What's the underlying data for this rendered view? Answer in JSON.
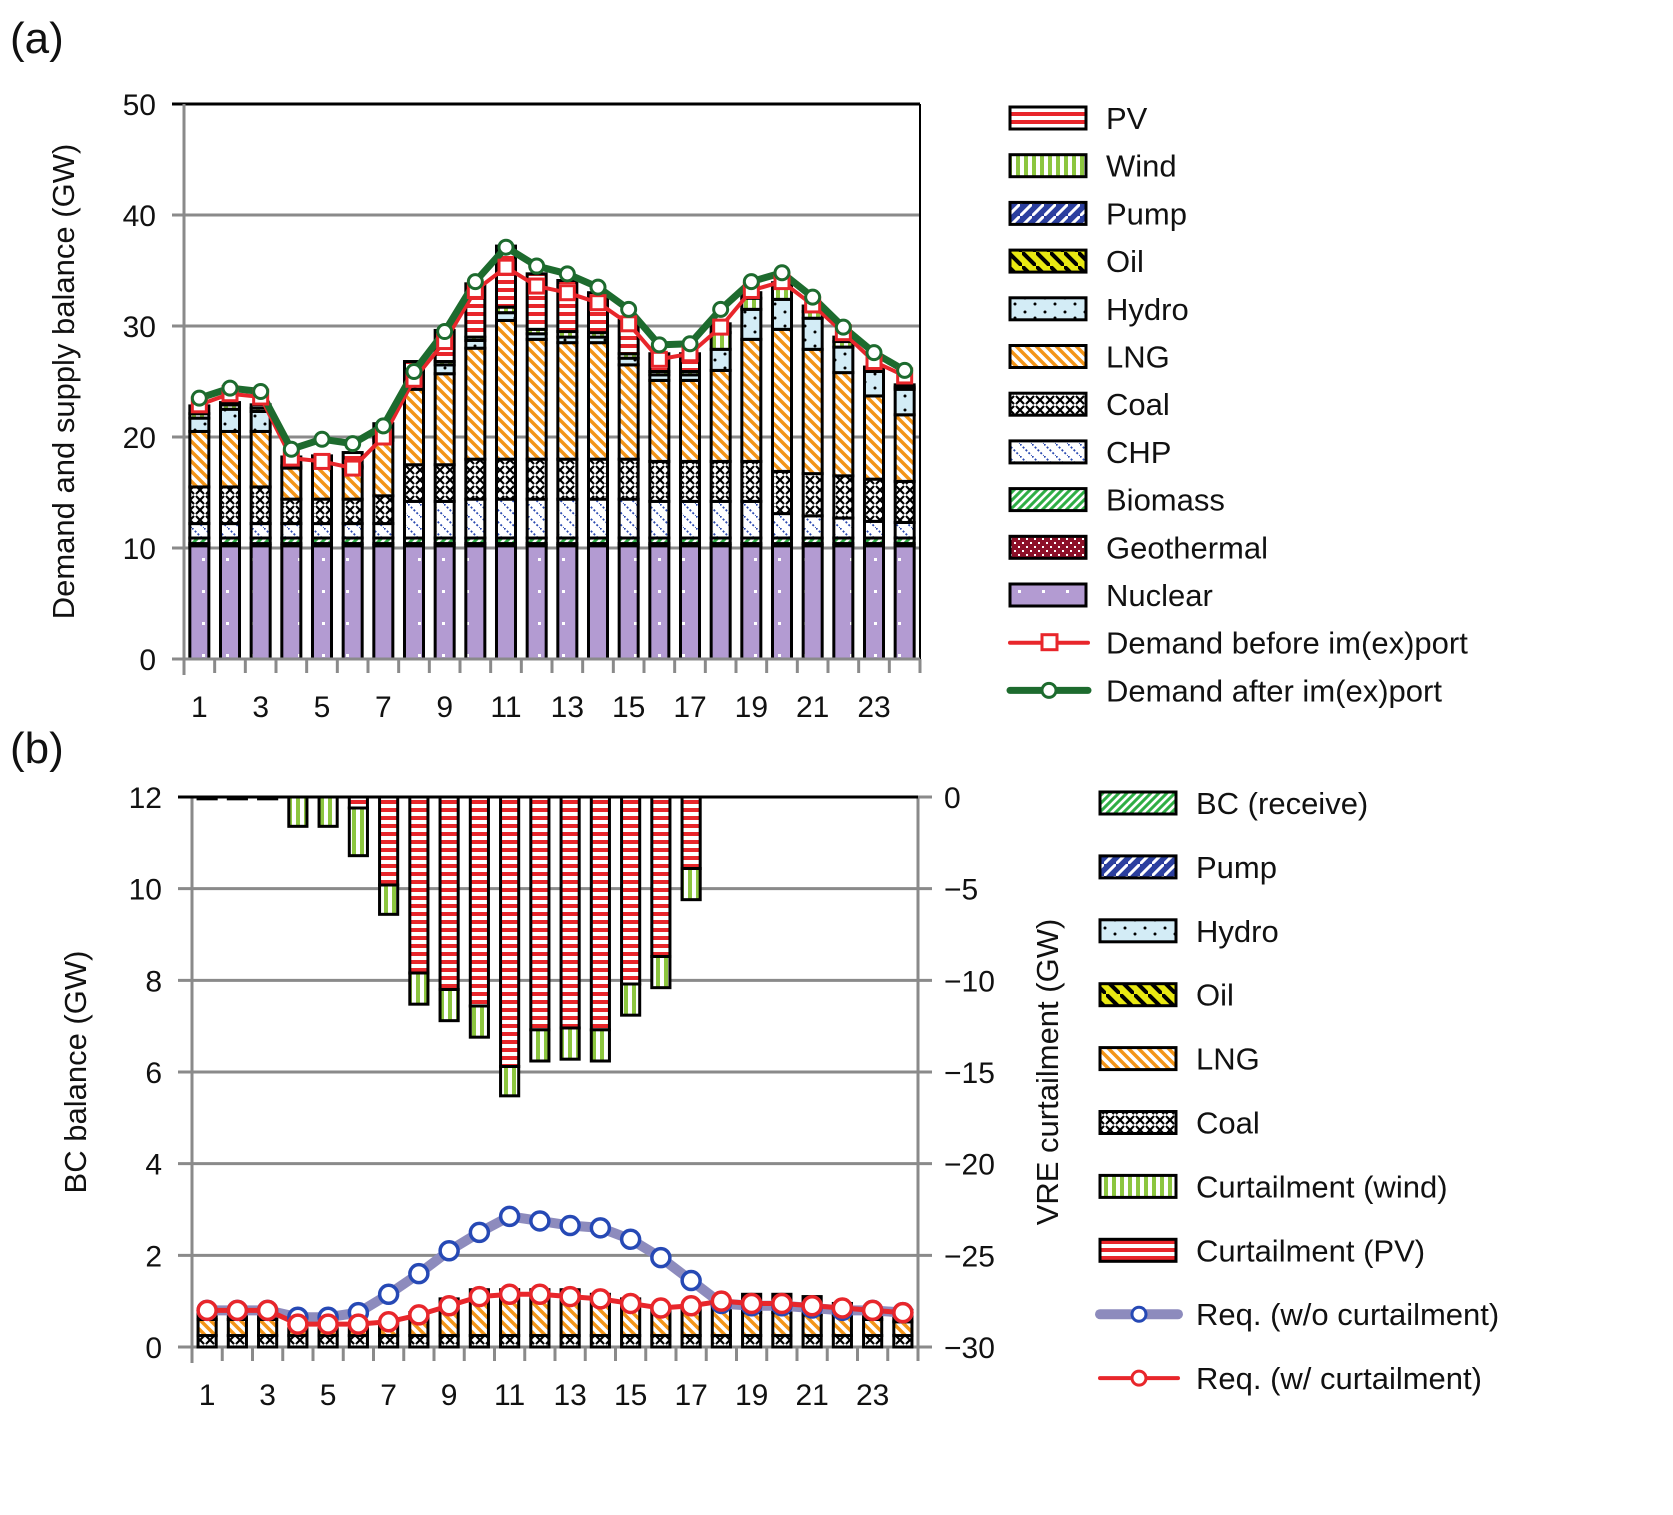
{
  "panels": {
    "a": "(a)",
    "b": "(b)"
  },
  "chart_data": [
    {
      "id": "a",
      "type": "bar",
      "stacked": true,
      "title": "",
      "xlabel": "",
      "ylabel": "Demand and supply balance (GW)",
      "ylim": [
        0,
        50
      ],
      "yticks": [
        0,
        10,
        20,
        30,
        40,
        50
      ],
      "xticks": [
        1,
        3,
        5,
        7,
        9,
        11,
        13,
        15,
        17,
        19,
        21,
        23
      ],
      "categories": [
        1,
        2,
        3,
        4,
        5,
        6,
        7,
        8,
        9,
        10,
        11,
        12,
        13,
        14,
        15,
        16,
        17,
        18,
        19,
        20,
        21,
        22,
        23,
        24
      ],
      "grid": true,
      "legend": "right",
      "series": [
        {
          "name": "Nuclear",
          "key": "nuclear",
          "values": [
            10.2,
            10.2,
            10.2,
            10.2,
            10.2,
            10.2,
            10.2,
            10.2,
            10.2,
            10.2,
            10.2,
            10.2,
            10.2,
            10.2,
            10.2,
            10.2,
            10.2,
            10.2,
            10.2,
            10.2,
            10.2,
            10.2,
            10.2,
            10.2
          ]
        },
        {
          "name": "Geothermal",
          "key": "geothermal",
          "values": [
            0.2,
            0.2,
            0.2,
            0.2,
            0.2,
            0.2,
            0.2,
            0.2,
            0.2,
            0.2,
            0.2,
            0.2,
            0.2,
            0.2,
            0.2,
            0.2,
            0.2,
            0.2,
            0.2,
            0.2,
            0.2,
            0.2,
            0.2,
            0.2
          ]
        },
        {
          "name": "Biomass",
          "key": "biomass",
          "values": [
            0.5,
            0.5,
            0.5,
            0.5,
            0.5,
            0.5,
            0.5,
            0.5,
            0.5,
            0.5,
            0.5,
            0.5,
            0.5,
            0.5,
            0.5,
            0.5,
            0.5,
            0.5,
            0.5,
            0.5,
            0.5,
            0.5,
            0.5,
            0.5
          ]
        },
        {
          "name": "CHP",
          "key": "chp",
          "values": [
            1.3,
            1.3,
            1.3,
            1.3,
            1.3,
            1.3,
            1.3,
            3.3,
            3.3,
            3.5,
            3.5,
            3.5,
            3.5,
            3.5,
            3.5,
            3.3,
            3.3,
            3.3,
            3.3,
            2.2,
            2.0,
            1.8,
            1.5,
            1.4
          ]
        },
        {
          "name": "Coal",
          "key": "coal",
          "values": [
            3.3,
            3.3,
            3.3,
            2.2,
            2.2,
            2.2,
            2.5,
            3.3,
            3.3,
            3.6,
            3.6,
            3.6,
            3.6,
            3.6,
            3.6,
            3.6,
            3.6,
            3.6,
            3.6,
            3.8,
            3.8,
            3.8,
            3.8,
            3.7
          ]
        },
        {
          "name": "LNG",
          "key": "lng",
          "values": [
            5.0,
            5.0,
            5.0,
            2.8,
            2.8,
            2.8,
            5.0,
            6.8,
            8.2,
            10.0,
            12.5,
            10.8,
            10.5,
            10.5,
            8.5,
            7.3,
            7.3,
            8.2,
            11.0,
            12.8,
            11.2,
            9.3,
            7.5,
            6.0
          ]
        },
        {
          "name": "Hydro",
          "key": "hydro",
          "values": [
            1.2,
            2.0,
            1.8,
            0.2,
            0.2,
            0.2,
            0.2,
            0.9,
            0.8,
            0.7,
            0.7,
            0.5,
            0.5,
            0.5,
            0.6,
            0.5,
            0.5,
            1.9,
            2.7,
            2.7,
            2.8,
            2.3,
            2.2,
            2.3
          ]
        },
        {
          "name": "Oil",
          "key": "oil",
          "values": [
            0,
            0,
            0,
            0,
            0,
            0,
            0,
            0,
            0,
            0,
            0,
            0,
            0,
            0,
            0,
            0,
            0,
            0,
            0,
            0,
            0,
            0,
            0,
            0
          ]
        },
        {
          "name": "Pump",
          "key": "pump",
          "values": [
            0,
            0,
            0,
            0,
            0,
            0,
            0,
            0,
            0,
            0,
            0,
            0,
            0,
            0,
            0,
            0,
            0,
            0,
            0,
            0,
            0,
            0,
            0,
            0
          ]
        },
        {
          "name": "Wind",
          "key": "wind",
          "values": [
            0.4,
            0.4,
            0.3,
            0,
            0,
            0,
            0,
            0.3,
            0.3,
            0.3,
            0.5,
            0.4,
            0.5,
            0.4,
            0.4,
            0.3,
            0.3,
            1.5,
            1.0,
            1.2,
            0.6,
            0.5,
            0.2,
            0.2
          ]
        },
        {
          "name": "PV",
          "key": "pv",
          "values": [
            0.7,
            0.2,
            0.3,
            0.8,
            0.9,
            1.2,
            1.3,
            1.3,
            2.8,
            4.8,
            5.5,
            5.0,
            4.6,
            3.6,
            3.0,
            1.6,
            1.6,
            0.8,
            0.5,
            0.3,
            0.5,
            0.4,
            0.2,
            0.2
          ]
        }
      ],
      "lines": [
        {
          "name": "Demand before im(ex)port",
          "key": "before",
          "values": [
            22.9,
            23.9,
            23.6,
            18.1,
            17.8,
            17.2,
            20.0,
            25.2,
            28.6,
            33.2,
            35.3,
            33.6,
            33.0,
            32.1,
            30.2,
            27.0,
            27.5,
            29.9,
            33.2,
            34.0,
            31.9,
            29.4,
            26.8,
            25.5
          ]
        },
        {
          "name": "Demand after im(ex)port",
          "key": "after",
          "values": [
            23.5,
            24.4,
            24.1,
            18.9,
            19.8,
            19.4,
            21.0,
            25.9,
            29.5,
            34.0,
            37.1,
            35.4,
            34.7,
            33.5,
            31.5,
            28.3,
            28.4,
            31.5,
            34.0,
            34.8,
            32.6,
            29.9,
            27.6,
            26.0
          ]
        }
      ]
    },
    {
      "id": "b",
      "type": "bar",
      "stacked": true,
      "title": "",
      "xlabel": "",
      "ylabel": "BC balance (GW)",
      "y2label": "VRE curtailment (GW)",
      "ylim": [
        0,
        12
      ],
      "y2lim": [
        -30,
        0
      ],
      "yticks": [
        0,
        2,
        4,
        6,
        8,
        10,
        12
      ],
      "y2ticks": [
        0,
        -5,
        -10,
        -15,
        -20,
        -25,
        -30
      ],
      "y2ticklabels": [
        "0",
        "−5",
        "−10",
        "−15",
        "−20",
        "−25",
        "−30"
      ],
      "xticks": [
        1,
        3,
        5,
        7,
        9,
        11,
        13,
        15,
        17,
        19,
        21,
        23
      ],
      "categories": [
        1,
        2,
        3,
        4,
        5,
        6,
        7,
        8,
        9,
        10,
        11,
        12,
        13,
        14,
        15,
        16,
        17,
        18,
        19,
        20,
        21,
        22,
        23,
        24
      ],
      "grid": true,
      "legend": "right",
      "series": [
        {
          "name": "Coal",
          "key": "coal",
          "axis": "left",
          "values": [
            0.25,
            0.25,
            0.25,
            0.25,
            0.25,
            0.25,
            0.25,
            0.25,
            0.25,
            0.25,
            0.25,
            0.25,
            0.25,
            0.25,
            0.25,
            0.25,
            0.25,
            0.25,
            0.25,
            0.25,
            0.25,
            0.25,
            0.25,
            0.25
          ]
        },
        {
          "name": "LNG",
          "key": "lng",
          "axis": "left",
          "values": [
            0.35,
            0.35,
            0.35,
            0.15,
            0.15,
            0.15,
            0.3,
            0.5,
            0.8,
            1.0,
            1.0,
            1.0,
            1.0,
            0.9,
            0.8,
            0.6,
            0.6,
            0.65,
            0.5,
            0.5,
            0.45,
            0.45,
            0.35,
            0.3
          ]
        },
        {
          "name": "Oil",
          "key": "oil",
          "axis": "left",
          "values": [
            0,
            0,
            0,
            0,
            0,
            0,
            0,
            0,
            0,
            0,
            0,
            0,
            0,
            0,
            0,
            0,
            0,
            0,
            0,
            0,
            0,
            0,
            0,
            0
          ]
        },
        {
          "name": "Hydro",
          "key": "hydro",
          "axis": "left",
          "values": [
            0.2,
            0.2,
            0.2,
            0,
            0,
            0,
            0,
            0,
            0,
            0,
            0,
            0,
            0,
            0,
            0,
            0,
            0,
            0.1,
            0.4,
            0.4,
            0.4,
            0.25,
            0.25,
            0.25
          ]
        },
        {
          "name": "Pump",
          "key": "pump",
          "axis": "left",
          "values": [
            0,
            0,
            0,
            0,
            0,
            0,
            0,
            0,
            0,
            0,
            0,
            0,
            0,
            0,
            0,
            0,
            0,
            0,
            0,
            0,
            0,
            0,
            0,
            0
          ]
        },
        {
          "name": "BC (receive)",
          "key": "bc",
          "axis": "left",
          "values": [
            0,
            0,
            0,
            0,
            0,
            0,
            0,
            0,
            0,
            0,
            0,
            0,
            0,
            0,
            0,
            0,
            0,
            0,
            0,
            0,
            0,
            0,
            0,
            0
          ]
        },
        {
          "name": "Curtailment (PV)",
          "key": "cpv",
          "axis": "right",
          "values": [
            0,
            0,
            0,
            0,
            0,
            -0.6,
            -4.8,
            -9.6,
            -10.5,
            -11.4,
            -14.7,
            -12.7,
            -12.6,
            -12.7,
            -10.2,
            -8.7,
            -3.9,
            0,
            0,
            0,
            0,
            0,
            0,
            0
          ]
        },
        {
          "name": "Curtailment (wind)",
          "key": "cwind",
          "axis": "right",
          "values": [
            -0.1,
            -0.1,
            -0.1,
            -1.6,
            -1.6,
            -2.6,
            -1.6,
            -1.7,
            -1.7,
            -1.7,
            -1.6,
            -1.7,
            -1.7,
            -1.7,
            -1.7,
            -1.7,
            -1.7,
            0,
            0,
            0,
            0,
            0,
            0,
            0
          ]
        }
      ],
      "lines": [
        {
          "name": "Req. (w/o curtailment)",
          "key": "req_wo",
          "axis": "left",
          "values": [
            0.8,
            0.8,
            0.8,
            0.65,
            0.65,
            0.75,
            1.15,
            1.6,
            2.1,
            2.5,
            2.85,
            2.75,
            2.65,
            2.6,
            2.35,
            1.95,
            1.45,
            0.95,
            0.9,
            0.9,
            0.85,
            0.8,
            0.8,
            0.75
          ]
        },
        {
          "name": "Req. (w/ curtailment)",
          "key": "req_w",
          "axis": "left",
          "values": [
            0.8,
            0.8,
            0.8,
            0.5,
            0.5,
            0.5,
            0.55,
            0.7,
            0.9,
            1.1,
            1.15,
            1.15,
            1.1,
            1.05,
            0.95,
            0.85,
            0.9,
            1.0,
            0.95,
            0.95,
            0.9,
            0.85,
            0.8,
            0.75
          ]
        }
      ]
    }
  ],
  "legend_a": [
    {
      "label": "PV",
      "key": "pv"
    },
    {
      "label": "Wind",
      "key": "wind"
    },
    {
      "label": "Pump",
      "key": "pump"
    },
    {
      "label": "Oil",
      "key": "oil"
    },
    {
      "label": "Hydro",
      "key": "hydro"
    },
    {
      "label": "LNG",
      "key": "lng"
    },
    {
      "label": "Coal",
      "key": "coal"
    },
    {
      "label": "CHP",
      "key": "chp"
    },
    {
      "label": "Biomass",
      "key": "biomass"
    },
    {
      "label": "Geothermal",
      "key": "geothermal"
    },
    {
      "label": "Nuclear",
      "key": "nuclear"
    },
    {
      "label": "Demand before im(ex)port",
      "key": "before",
      "line": true
    },
    {
      "label": "Demand after im(ex)port",
      "key": "after",
      "line": true
    }
  ],
  "legend_b": [
    {
      "label": "BC (receive)",
      "key": "bc"
    },
    {
      "label": "Pump",
      "key": "pump"
    },
    {
      "label": "Hydro",
      "key": "hydro"
    },
    {
      "label": "Oil",
      "key": "oil"
    },
    {
      "label": "LNG",
      "key": "lng"
    },
    {
      "label": "Coal",
      "key": "coal"
    },
    {
      "label": "Curtailment (wind)",
      "key": "cwind"
    },
    {
      "label": "Curtailment (PV)",
      "key": "cpv"
    },
    {
      "label": "Req. (w/o curtailment)",
      "key": "req_wo",
      "line": true
    },
    {
      "label": "Req. (w/ curtailment)",
      "key": "req_w",
      "line": true
    }
  ],
  "colors": {
    "pv": "#e8262b",
    "wind": "#8cc63f",
    "pump": "#2b3f9e",
    "oil": "#e8e812",
    "hydro": "#d3ecf6",
    "lng": "#f39518",
    "coal": "#111111",
    "chp": "#2a49b0",
    "biomass": "#2fae45",
    "geothermal": "#8c1028",
    "nuclear": "#b39bd2",
    "before": "#e8262b",
    "after": "#1d6b2e",
    "req_wo": "#8d8bbd",
    "req_wo_marker": "#2649b5",
    "req_w": "#e8262b",
    "bc": "#2fae45",
    "cwind": "#8cc63f",
    "cpv": "#e8262b",
    "grid": "#8a8a8a"
  }
}
